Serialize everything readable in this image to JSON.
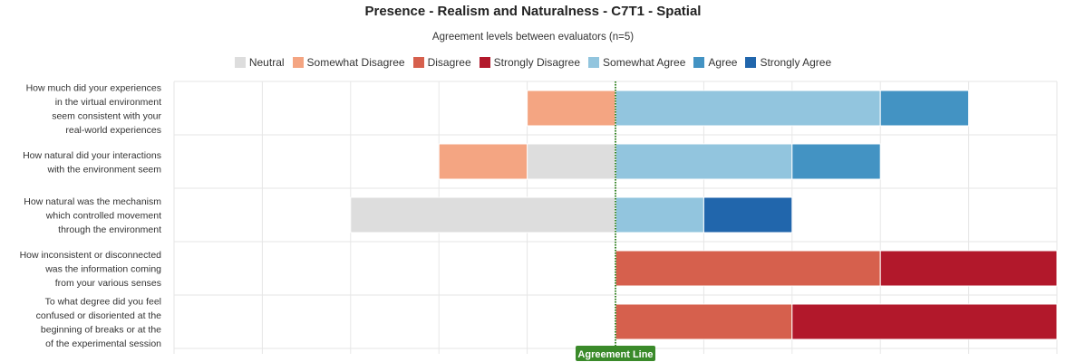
{
  "chart_data": {
    "type": "bar",
    "orientation": "horizontal-diverging-stacked",
    "title": "Presence - Realism and Naturalness - C7T1 - Spatial",
    "subtitle": "Agreement levels between evaluators (n=5)",
    "legend_position": "top-center",
    "reference_line_label": "Agreement Line",
    "xlim": [
      -50,
      50
    ],
    "levels": [
      {
        "name": "Neutral",
        "color": "#dddddd",
        "side": "negative"
      },
      {
        "name": "Somewhat Disagree",
        "color": "#f4a582",
        "side": "negative"
      },
      {
        "name": "Disagree",
        "color": "#d6604d",
        "side": "positive"
      },
      {
        "name": "Strongly Disagree",
        "color": "#b2182b",
        "side": "positive"
      },
      {
        "name": "Somewhat Agree",
        "color": "#92c5de",
        "side": "positive"
      },
      {
        "name": "Agree",
        "color": "#4393c3",
        "side": "positive"
      },
      {
        "name": "Strongly Agree",
        "color": "#2166ac",
        "side": "positive"
      }
    ],
    "categories": [
      {
        "label": [
          "How much did your experiences",
          "in the virtual environment",
          "seem consistent with your",
          "real-world experiences"
        ],
        "negative": [
          {
            "level": "Somewhat Disagree",
            "value": 10
          }
        ],
        "positive": [
          {
            "level": "Somewhat Agree",
            "value": 30
          },
          {
            "level": "Agree",
            "value": 10
          }
        ]
      },
      {
        "label": [
          "How natural did your interactions",
          "with the environment seem"
        ],
        "negative": [
          {
            "level": "Neutral",
            "value": 10
          },
          {
            "level": "Somewhat Disagree",
            "value": 10
          }
        ],
        "positive": [
          {
            "level": "Somewhat Agree",
            "value": 20
          },
          {
            "level": "Agree",
            "value": 10
          }
        ]
      },
      {
        "label": [
          "How natural was the mechanism",
          "which controlled movement",
          "through the environment"
        ],
        "negative": [
          {
            "level": "Neutral",
            "value": 30
          }
        ],
        "positive": [
          {
            "level": "Somewhat Agree",
            "value": 10
          },
          {
            "level": "Strongly Agree",
            "value": 10
          }
        ]
      },
      {
        "label": [
          "How inconsistent or disconnected",
          "was the information coming",
          "from your various senses"
        ],
        "negative": [],
        "positive": [
          {
            "level": "Disagree",
            "value": 30
          },
          {
            "level": "Strongly Disagree",
            "value": 20
          }
        ]
      },
      {
        "label": [
          "To what degree did you feel",
          "confused or disoriented at the",
          "beginning of breaks or at the",
          "of the experimental session"
        ],
        "negative": [],
        "positive": [
          {
            "level": "Disagree",
            "value": 20
          },
          {
            "level": "Strongly Disagree",
            "value": 30
          }
        ]
      }
    ]
  }
}
